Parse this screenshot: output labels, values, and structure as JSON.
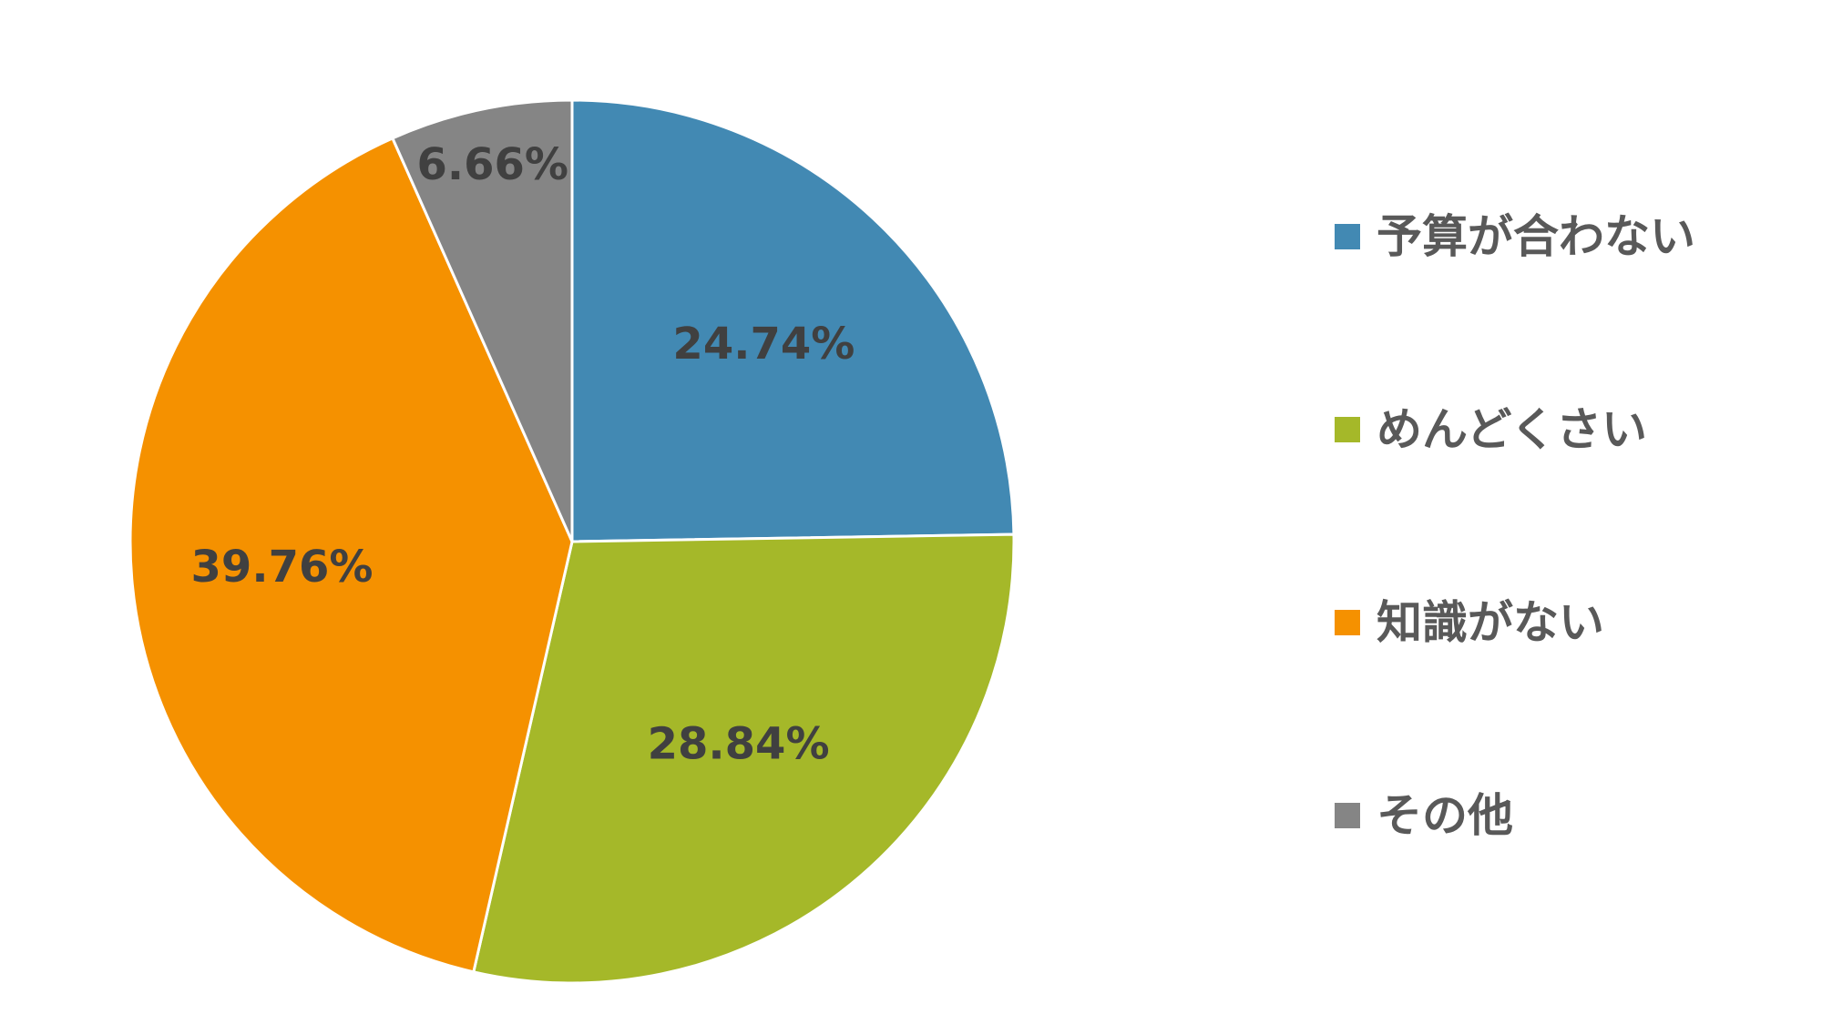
{
  "chart_data": {
    "type": "pie",
    "title": "",
    "categories": [
      "予算が合わない",
      "めんどくさい",
      "知識がない",
      "その他"
    ],
    "values": [
      24.74,
      28.84,
      39.76,
      6.66
    ],
    "data_labels": [
      "24.74%",
      "28.84%",
      "39.76%",
      "6.66%"
    ],
    "colors": [
      "#4289b3",
      "#a5b829",
      "#f59100",
      "#858585"
    ],
    "start_angle": "12 o'clock",
    "direction": "clockwise",
    "legend_position": "right"
  }
}
